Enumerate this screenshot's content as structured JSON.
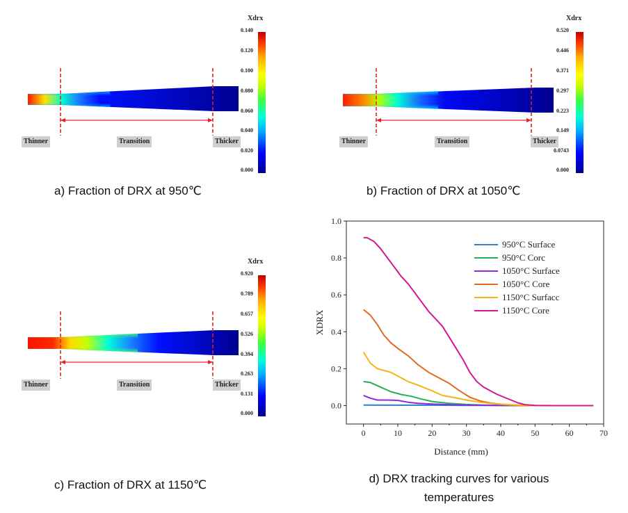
{
  "panels": [
    {
      "caption": "a) Fraction of DRX at 950℃",
      "colorbar_title": "Xdrx",
      "colorbar_ticks": [
        "0.140",
        "0.120",
        "0.100",
        "0.080",
        "0.060",
        "0.040",
        "0.020",
        "0.000"
      ],
      "region_labels": [
        "Thinner",
        "Transition",
        "Thicker"
      ]
    },
    {
      "caption": "b) Fraction of DRX at 1050℃",
      "colorbar_title": "Xdrx",
      "colorbar_ticks": [
        "0.520",
        "0.446",
        "0.371",
        "0.297",
        "0.223",
        "0.149",
        "0.0743",
        "0.000"
      ],
      "region_labels": [
        "Thinner",
        "Transition",
        "Thicker"
      ]
    },
    {
      "caption": "c) Fraction of DRX at 1150℃",
      "colorbar_title": "Xdrx",
      "colorbar_ticks": [
        "0.920",
        "0.789",
        "0.657",
        "0.526",
        "0.394",
        "0.263",
        "0.131",
        "0.000"
      ],
      "region_labels": [
        "Thinner",
        "Transition",
        "Thicker"
      ]
    }
  ],
  "chart_caption": "d) DRX tracking curves for various temperatures",
  "chart_data": {
    "type": "line",
    "xlabel": "Distance (mm)",
    "ylabel": "XDRX",
    "xlim": [
      -5,
      70
    ],
    "ylim": [
      -0.1,
      1.0
    ],
    "xticks": [
      0,
      10,
      20,
      30,
      40,
      50,
      60,
      70
    ],
    "yticks": [
      0.0,
      0.2,
      0.4,
      0.6,
      0.8,
      1.0
    ],
    "legend_position": "top-right",
    "grid": false,
    "series": [
      {
        "name": "950°C Surface",
        "color": "#2f7ec8",
        "x": [
          0,
          10,
          20,
          30,
          40,
          50,
          60,
          67
        ],
        "y": [
          0.003,
          0.002,
          0.002,
          0.001,
          0.001,
          0.0,
          0.0,
          0.0
        ]
      },
      {
        "name": "950°C Corc",
        "color": "#22b14c",
        "x": [
          0,
          2,
          5,
          8,
          11,
          14,
          17,
          20,
          25,
          30,
          35,
          40,
          45,
          50,
          60,
          67
        ],
        "y": [
          0.13,
          0.125,
          0.1,
          0.075,
          0.06,
          0.05,
          0.035,
          0.022,
          0.012,
          0.006,
          0.003,
          0.001,
          0.0,
          0.0,
          0.0,
          0.0
        ]
      },
      {
        "name": "1050°C Surface",
        "color": "#8a2be2",
        "x": [
          0,
          2,
          4,
          7,
          10,
          13,
          16,
          20,
          25,
          30,
          40,
          50,
          60,
          67
        ],
        "y": [
          0.055,
          0.04,
          0.03,
          0.03,
          0.028,
          0.018,
          0.012,
          0.008,
          0.005,
          0.003,
          0.001,
          0.0,
          0.0,
          0.0
        ]
      },
      {
        "name": "1050°C Core",
        "color": "#e06a20",
        "x": [
          0,
          2,
          4,
          6,
          8,
          10,
          13,
          16,
          19,
          22,
          25,
          28,
          31,
          34,
          37,
          40,
          43,
          46,
          50,
          60,
          67
        ],
        "y": [
          0.52,
          0.49,
          0.44,
          0.38,
          0.34,
          0.31,
          0.27,
          0.22,
          0.18,
          0.15,
          0.12,
          0.08,
          0.045,
          0.025,
          0.014,
          0.007,
          0.003,
          0.0,
          0.0,
          0.0,
          0.0
        ]
      },
      {
        "name": "1150°C Surfacc",
        "color": "#f7b21a",
        "x": [
          0,
          2,
          4,
          6,
          8,
          10,
          13,
          16,
          20,
          23,
          26,
          30,
          34,
          38,
          42,
          46,
          50,
          60,
          67
        ],
        "y": [
          0.29,
          0.23,
          0.2,
          0.19,
          0.18,
          0.16,
          0.13,
          0.11,
          0.08,
          0.055,
          0.045,
          0.03,
          0.018,
          0.01,
          0.005,
          0.002,
          0.0,
          0.0,
          0.0
        ]
      },
      {
        "name": "1150°C Core",
        "color": "#d6168f",
        "x": [
          0,
          1,
          3,
          5,
          7,
          9,
          11,
          13,
          15,
          17,
          19,
          21,
          23,
          25,
          27,
          29,
          31,
          33,
          35,
          37,
          39,
          41,
          43,
          45,
          47,
          50,
          55,
          60,
          67
        ],
        "y": [
          0.91,
          0.91,
          0.89,
          0.85,
          0.8,
          0.75,
          0.7,
          0.66,
          0.61,
          0.56,
          0.51,
          0.47,
          0.43,
          0.37,
          0.31,
          0.25,
          0.18,
          0.13,
          0.1,
          0.08,
          0.06,
          0.045,
          0.03,
          0.015,
          0.005,
          0.001,
          0.0,
          0.0,
          0.0
        ]
      }
    ]
  }
}
